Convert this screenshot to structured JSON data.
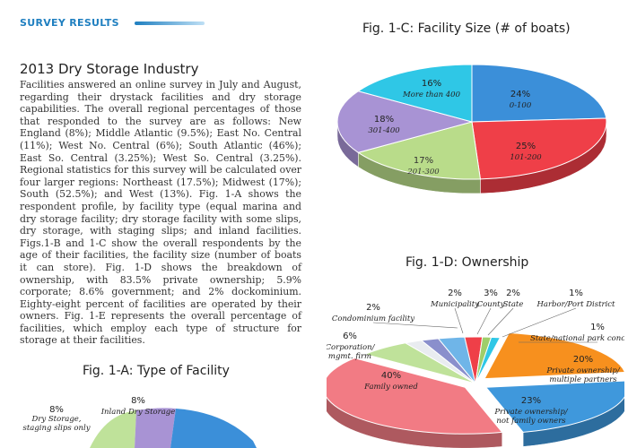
{
  "header": {
    "section_label": "SURVEY RESULTS"
  },
  "article": {
    "title": "2013 Dry Storage Industry",
    "body": "Facilities answered an online survey in July and August, regarding their drystack facilities and dry storage capabilities. The overall regional percentages of those that responded to the survey are as follows: New England (8%); Middle Atlantic (9.5%); East No. Central (11%); West No. Central (6%); South Atlantic (46%); East So. Central (3.25%); West So. Central (3.25%). Regional statistics for this survey will be calculated over four larger regions: Northeast (17.5%); Midwest (17%); South (52.5%); and West (13%). Fig. 1-A shows the respondent profile, by facility type (equal marina and dry storage facility; dry storage facility with some slips, dry storage, with staging slips; and inland facilities. Figs.1-B and 1-C show the overall respondents by the age of their facilities, the facility size (number of boats it can store). Fig. 1-D shows the breakdown of ownership, with 83.5% private ownership; 5.9% corporate; 8.6% government; and 2% dockominium. Eighty-eight percent of facilities are operated by their owners. Fig. 1-E represents the overall percentage of facilities, which employ each type of structure for storage at their facilities."
  },
  "chart_data": [
    {
      "id": "fig-1c",
      "type": "pie",
      "title": "Fig. 1-C: Facility Size (# of boats)",
      "slices": [
        {
          "label": "0-100",
          "value": 24,
          "pct_label": "24%",
          "color": "#3b8fd9"
        },
        {
          "label": "101-200",
          "value": 25,
          "pct_label": "25%",
          "color": "#ef3f48"
        },
        {
          "label": "201-300",
          "value": 17,
          "pct_label": "17%",
          "color": "#b9dc8a"
        },
        {
          "label": "301-400",
          "value": 18,
          "pct_label": "18%",
          "color": "#a893d4"
        },
        {
          "label": "More than 400",
          "value": 16,
          "pct_label": "16%",
          "color": "#2fc7e6"
        }
      ]
    },
    {
      "id": "fig-1d",
      "type": "pie",
      "title": "Fig. 1-D: Ownership",
      "slices": [
        {
          "label": "Private ownership/ multiple partners",
          "value": 20,
          "pct_label": "20%",
          "color": "#f7901e"
        },
        {
          "label": "Private ownership/ not family owners",
          "value": 23,
          "pct_label": "23%",
          "color": "#3f98dc"
        },
        {
          "label": "Family owned",
          "value": 40,
          "pct_label": "40%",
          "color": "#f27b84"
        },
        {
          "label": "Corporation/ mgmt. firm",
          "value": 6,
          "pct_label": "6%",
          "color": "#bfe29a"
        },
        {
          "label": "Condominium facility",
          "value": 2,
          "pct_label": "2%",
          "color": "#e9ecf0"
        },
        {
          "label": "Municipality",
          "value": 2,
          "pct_label": "2%",
          "color": "#8a8fcc"
        },
        {
          "label": "County",
          "value": 3,
          "pct_label": "3%",
          "color": "#6fb5e8"
        },
        {
          "label": "State",
          "value": 2,
          "pct_label": "2%",
          "color": "#ef3f48"
        },
        {
          "label": "Harbor/Port District",
          "value": 1,
          "pct_label": "1%",
          "color": "#9fce6a"
        },
        {
          "label": "State/national park concessionaire",
          "value": 1,
          "pct_label": "1%",
          "color": "#2fc7e6"
        }
      ]
    },
    {
      "id": "fig-1a",
      "type": "pie",
      "title": "Fig. 1-A: Type of Facility",
      "slices": [
        {
          "label": "Dry Storage, staging slips only",
          "value": 8,
          "pct_label": "8%",
          "color": "#bfe29a"
        },
        {
          "label": "Inland Dry Storage",
          "value": 8,
          "pct_label": "8%",
          "color": "#a893d4"
        }
      ]
    }
  ]
}
